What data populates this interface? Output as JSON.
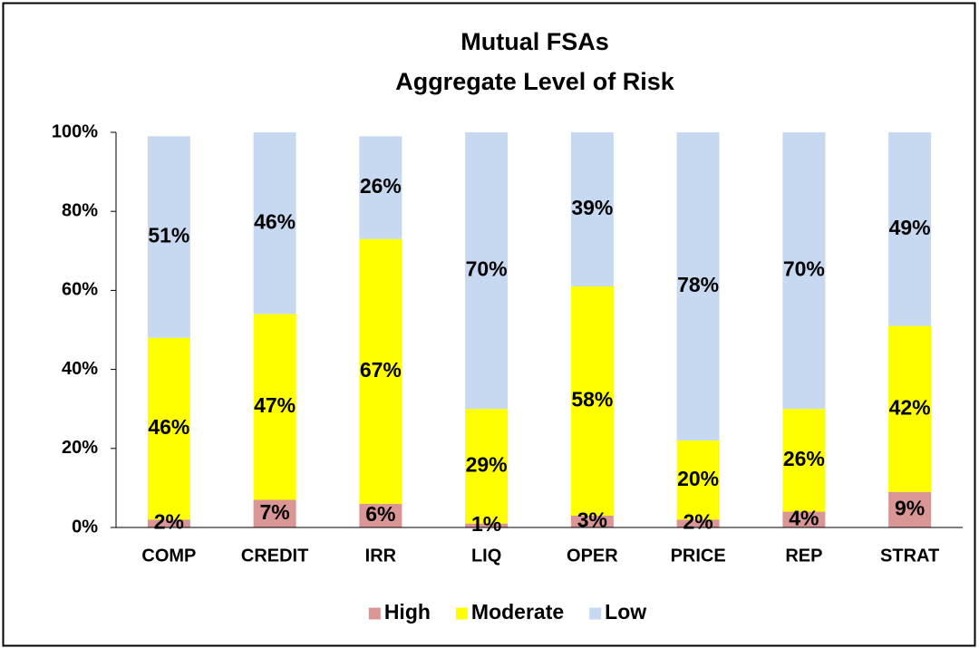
{
  "chart_data": {
    "type": "stacked_bar",
    "title": [
      "Mutual FSAs",
      "Aggregate Level of Risk"
    ],
    "categories": [
      "COMP",
      "CREDIT",
      "IRR",
      "LIQ",
      "OPER",
      "PRICE",
      "REP",
      "STRAT"
    ],
    "series": [
      {
        "name": "High",
        "color": "#d99694",
        "values": [
          2,
          7,
          6,
          1,
          3,
          2,
          4,
          9
        ],
        "value_labels": [
          "2%",
          "7%",
          "6%",
          "1%",
          "3%",
          "2%",
          "4%",
          "9%"
        ]
      },
      {
        "name": "Moderate",
        "color": "#ffff00",
        "values": [
          46,
          47,
          67,
          29,
          58,
          20,
          26,
          42
        ],
        "value_labels": [
          "46%",
          "47%",
          "67%",
          "29%",
          "58%",
          "20%",
          "26%",
          "42%"
        ]
      },
      {
        "name": "Low",
        "color": "#c6d9f1",
        "values": [
          51,
          46,
          26,
          70,
          39,
          78,
          70,
          49
        ],
        "value_labels": [
          "51%",
          "46%",
          "26%",
          "70%",
          "39%",
          "78%",
          "70%",
          "49%"
        ]
      }
    ],
    "ylim": [
      0,
      100
    ],
    "yticks": [
      {
        "value": 0,
        "label": "0%"
      },
      {
        "value": 20,
        "label": "20%"
      },
      {
        "value": 40,
        "label": "40%"
      },
      {
        "value": 60,
        "label": "60%"
      },
      {
        "value": 80,
        "label": "80%"
      },
      {
        "value": 100,
        "label": "100%"
      }
    ],
    "legend": "bottom"
  }
}
